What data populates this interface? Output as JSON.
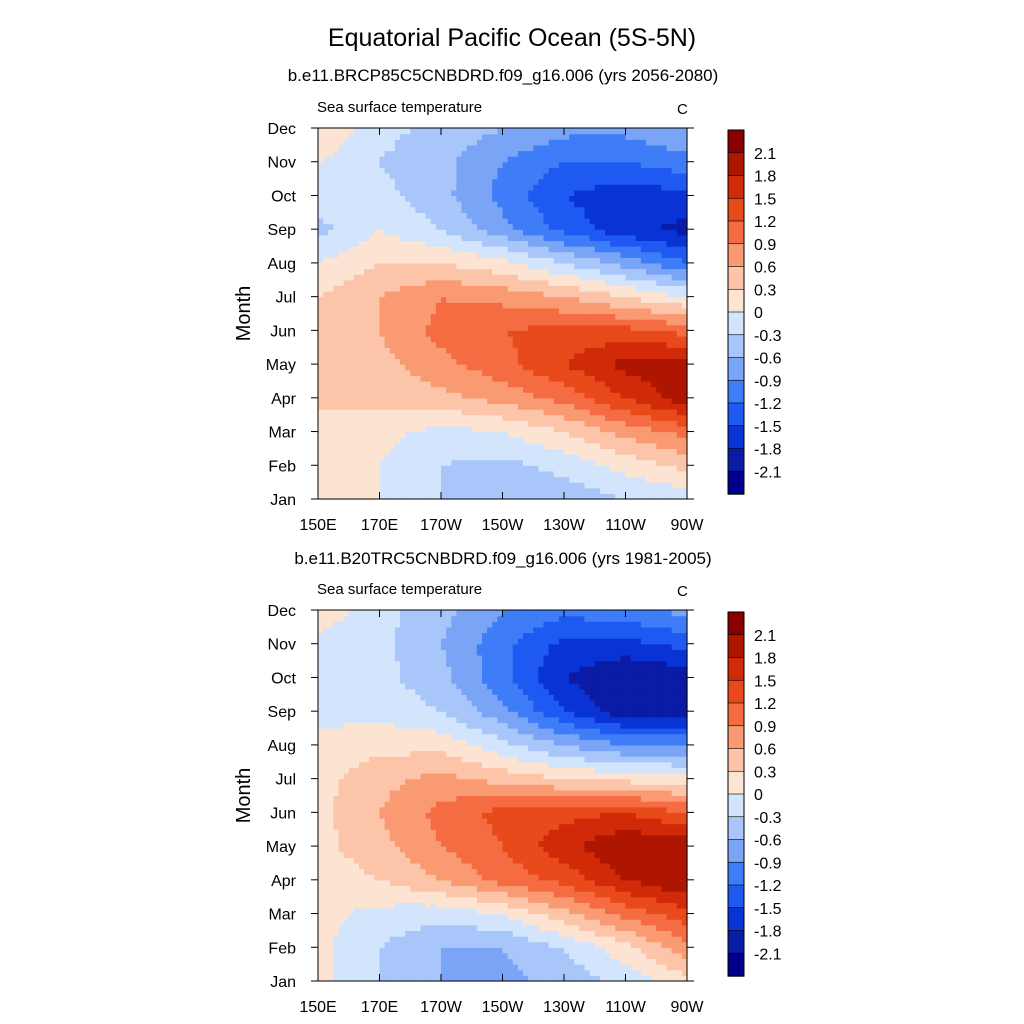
{
  "title": "Equatorial Pacific Ocean (5S-5N)",
  "chart_data": [
    {
      "type": "heatmap",
      "title": "b.e11.BRCP85C5CNBDRD.f09_g16.006 (yrs 2056-2080)",
      "subtitle": "Sea surface temperature",
      "units": "C",
      "xlabel": "",
      "ylabel": "Month",
      "x_ticks": [
        "150E",
        "170E",
        "170W",
        "150W",
        "130W",
        "110W",
        "90W"
      ],
      "x_lon": [
        150,
        170,
        190,
        210,
        230,
        250,
        270
      ],
      "xlim": [
        150,
        270
      ],
      "y_ticks": [
        "Jan",
        "Feb",
        "Mar",
        "Apr",
        "May",
        "Jun",
        "Jul",
        "Aug",
        "Sep",
        "Oct",
        "Nov",
        "Dec"
      ],
      "ylim": [
        1,
        12
      ],
      "grid_lon": [
        150,
        170,
        190,
        210,
        230,
        250,
        270
      ],
      "z": [
        [
          0.3,
          0.0,
          -0.3,
          -0.5,
          -0.5,
          -0.3,
          -0.2
        ],
        [
          0.3,
          0.0,
          -0.3,
          -0.4,
          -0.2,
          0.1,
          0.4
        ],
        [
          0.3,
          0.1,
          -0.1,
          0.0,
          0.3,
          0.7,
          1.0
        ],
        [
          0.3,
          0.4,
          0.5,
          0.7,
          1.0,
          1.5,
          2.0
        ],
        [
          0.3,
          0.5,
          0.8,
          1.1,
          1.5,
          1.9,
          2.0
        ],
        [
          0.3,
          0.6,
          1.0,
          1.2,
          1.3,
          1.3,
          1.1
        ],
        [
          0.3,
          0.6,
          0.9,
          0.8,
          0.6,
          0.3,
          0.0
        ],
        [
          0.0,
          0.3,
          0.3,
          0.1,
          -0.3,
          -0.7,
          -1.2
        ],
        [
          -0.4,
          0.0,
          -0.3,
          -0.8,
          -1.3,
          -1.7,
          -1.9
        ],
        [
          -0.1,
          -0.2,
          -0.5,
          -1.0,
          -1.5,
          -1.7,
          -1.6
        ],
        [
          0.0,
          -0.3,
          -0.5,
          -0.9,
          -1.2,
          -1.2,
          -1.0
        ],
        [
          0.3,
          -0.2,
          -0.4,
          -0.6,
          -0.8,
          -0.8,
          -0.6
        ]
      ],
      "colorbar": {
        "levels": [
          -2.1,
          -1.8,
          -1.5,
          -1.2,
          -0.9,
          -0.6,
          -0.3,
          0,
          0.3,
          0.6,
          0.9,
          1.2,
          1.5,
          1.8,
          2.1
        ],
        "labels": [
          "-2.1",
          "-1.8",
          "-1.5",
          "-1.2",
          "-0.9",
          "-0.6",
          "-0.3",
          "0",
          "0.3",
          "0.6",
          "0.9",
          "1.2",
          "1.5",
          "1.8",
          "2.1"
        ]
      }
    },
    {
      "type": "heatmap",
      "title": "b.e11.B20TRC5CNBDRD.f09_g16.006 (yrs 1981-2005)",
      "subtitle": "Sea surface temperature",
      "units": "C",
      "xlabel": "",
      "ylabel": "Month",
      "x_ticks": [
        "150E",
        "170E",
        "170W",
        "150W",
        "130W",
        "110W",
        "90W"
      ],
      "x_lon": [
        150,
        170,
        190,
        210,
        230,
        250,
        270
      ],
      "xlim": [
        150,
        270
      ],
      "y_ticks": [
        "Jan",
        "Feb",
        "Mar",
        "Apr",
        "May",
        "Jun",
        "Jul",
        "Aug",
        "Sep",
        "Oct",
        "Nov",
        "Dec"
      ],
      "ylim": [
        1,
        12
      ],
      "grid_lon": [
        150,
        170,
        190,
        210,
        230,
        250,
        270
      ],
      "z": [
        [
          0.1,
          -0.3,
          -0.6,
          -0.7,
          -0.5,
          -0.2,
          0.2
        ],
        [
          0.1,
          -0.3,
          -0.6,
          -0.6,
          -0.3,
          0.2,
          0.8
        ],
        [
          0.1,
          -0.1,
          -0.2,
          0.0,
          0.5,
          1.0,
          1.4
        ],
        [
          0.1,
          0.3,
          0.6,
          1.0,
          1.3,
          1.8,
          2.1
        ],
        [
          0.2,
          0.5,
          0.9,
          1.2,
          1.7,
          2.1,
          2.0
        ],
        [
          0.2,
          0.6,
          1.0,
          1.3,
          1.4,
          1.5,
          1.2
        ],
        [
          0.2,
          0.5,
          0.7,
          0.5,
          0.3,
          0.2,
          0.1
        ],
        [
          0.1,
          0.2,
          0.2,
          -0.2,
          -0.6,
          -0.9,
          -0.9
        ],
        [
          -0.1,
          -0.1,
          -0.3,
          -0.8,
          -1.5,
          -2.0,
          -2.0
        ],
        [
          -0.1,
          -0.2,
          -0.5,
          -1.1,
          -1.8,
          -2.1,
          -2.0
        ],
        [
          -0.1,
          -0.2,
          -0.6,
          -1.1,
          -1.6,
          -1.6,
          -1.4
        ],
        [
          0.2,
          -0.2,
          -0.5,
          -0.9,
          -1.1,
          -1.0,
          -0.8
        ]
      ],
      "colorbar": {
        "levels": [
          -2.1,
          -1.8,
          -1.5,
          -1.2,
          -0.9,
          -0.6,
          -0.3,
          0,
          0.3,
          0.6,
          0.9,
          1.2,
          1.5,
          1.8,
          2.1
        ],
        "labels": [
          "-2.1",
          "-1.8",
          "-1.5",
          "-1.2",
          "-0.9",
          "-0.6",
          "-0.3",
          "0",
          "0.3",
          "0.6",
          "0.9",
          "1.2",
          "1.5",
          "1.8",
          "2.1"
        ]
      }
    }
  ],
  "palette": [
    "#00008b",
    "#0a1ba6",
    "#0a33d6",
    "#1e5af2",
    "#3f7cf7",
    "#7aa5f7",
    "#a9c6fa",
    "#d2e5fc",
    "#fde4d2",
    "#fcc4a8",
    "#f99a72",
    "#f56c42",
    "#e94a1c",
    "#d02a08",
    "#ae1600",
    "#8b0000"
  ]
}
